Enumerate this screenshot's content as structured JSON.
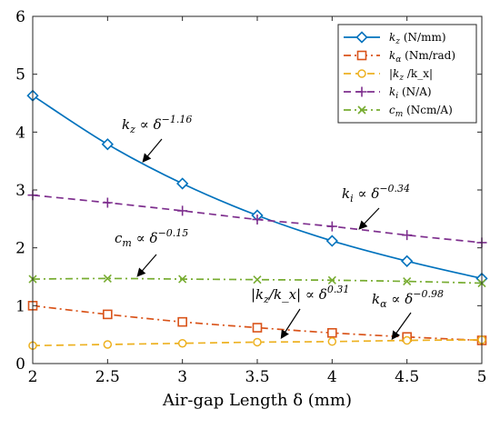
{
  "chart_data": {
    "type": "line",
    "title": "",
    "xlabel": "Air-gap Length δ (mm)",
    "ylabel": "",
    "xlim": [
      2,
      5
    ],
    "ylim": [
      0,
      6
    ],
    "x_ticks": [
      "2",
      "2.5",
      "3",
      "3.5",
      "4",
      "4.5",
      "5"
    ],
    "y_ticks": [
      "0",
      "1",
      "2",
      "3",
      "4",
      "5",
      "6"
    ],
    "grid": false,
    "legend_position": "top-right",
    "x": [
      2,
      2.5,
      3,
      3.5,
      4,
      4.5,
      5
    ],
    "series": [
      {
        "name": "k_z (N/mm)",
        "label_main": "k",
        "label_sub": "z",
        "label_unit": "(N/mm)",
        "color": "#0072BD",
        "dash": "solid",
        "marker": "diamond",
        "values": [
          4.63,
          3.79,
          3.11,
          2.56,
          2.12,
          1.77,
          1.47
        ]
      },
      {
        "name": "k_α (Nm/rad)",
        "label_main": "k",
        "label_sub": "α",
        "label_unit": "(Nm/rad)",
        "color": "#D95319",
        "dash": "dashdot",
        "marker": "square",
        "values": [
          1.0,
          0.85,
          0.72,
          0.62,
          0.53,
          0.46,
          0.4
        ]
      },
      {
        "name": "|k_z/k_x|",
        "label_main": "|k",
        "label_sub": "z",
        "label_unit": "/k_x|",
        "color": "#EDB120",
        "dash": "dashed",
        "marker": "circle",
        "values": [
          0.31,
          0.33,
          0.35,
          0.37,
          0.38,
          0.4,
          0.41
        ]
      },
      {
        "name": "k_i (N/A)",
        "label_main": "k",
        "label_sub": "i",
        "label_unit": "(N/A)",
        "color": "#7E2F8E",
        "dash": "dashed",
        "marker": "plus",
        "values": [
          2.91,
          2.78,
          2.64,
          2.49,
          2.37,
          2.22,
          2.09
        ]
      },
      {
        "name": "c_m (Ncm/A)",
        "label_main": "c",
        "label_sub": "m",
        "label_unit": "(Ncm/A)",
        "color": "#77AC30",
        "dash": "dashdot",
        "marker": "x",
        "values": [
          1.46,
          1.47,
          1.46,
          1.45,
          1.44,
          1.42,
          1.39
        ]
      }
    ],
    "annotations": [
      {
        "main": "k",
        "sub": "z",
        "rest": " ∝ δ",
        "exp": "−1.16"
      },
      {
        "main": "k",
        "sub": "i",
        "rest": " ∝ δ",
        "exp": "−0.34"
      },
      {
        "main": "c",
        "sub": "m",
        "rest": " ∝ δ",
        "exp": "−0.15"
      },
      {
        "main": "|k",
        "sub": "z",
        "rest": "/k_x| ∝ δ",
        "exp": "0.31"
      },
      {
        "main": "k",
        "sub": "α",
        "rest": " ∝ δ",
        "exp": "−0.98"
      }
    ]
  }
}
